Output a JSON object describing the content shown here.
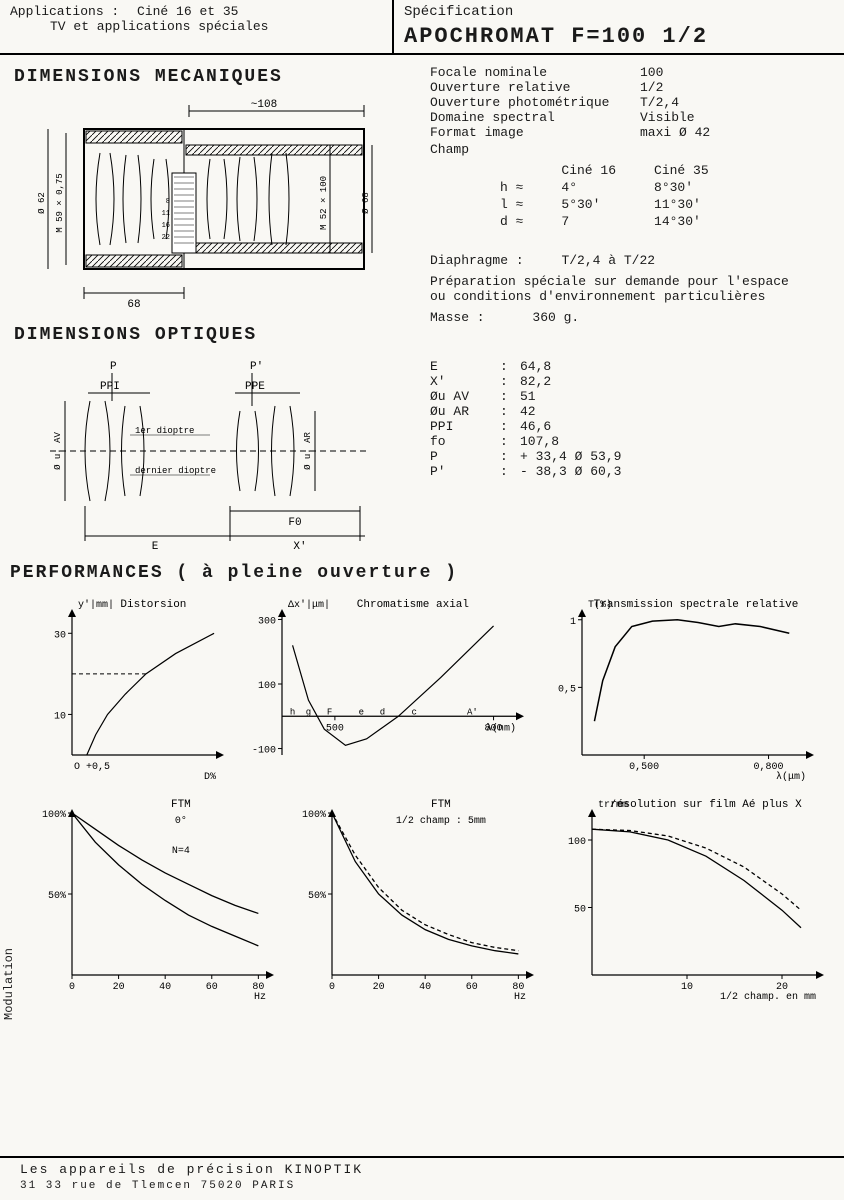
{
  "header": {
    "applications_label": "Applications :",
    "applications_line1": "Ciné 16 et 35",
    "applications_line2": "TV et applications spéciales",
    "spec_label": "Spécification",
    "spec_title": "APOCHROMAT  F=100  1/2"
  },
  "sections": {
    "dim_mech": "DIMENSIONS  MECANIQUES",
    "dim_opt": "DIMENSIONS  OPTIQUES",
    "perf": "PERFORMANCES ( à pleine ouverture )"
  },
  "mech_diagram": {
    "dim_top": "~108",
    "dim_bottom": "68",
    "left1": "Ø 62",
    "left2": "M 59 × 0,75",
    "right1": "M 52 × 100",
    "right2": "Ø 68",
    "marks": [
      "8",
      "11",
      "16",
      "22"
    ]
  },
  "specs": {
    "items": [
      {
        "k": "Focale nominale",
        "v": "100"
      },
      {
        "k": "Ouverture relative",
        "v": "1/2"
      },
      {
        "k": "Ouverture photométrique",
        "v": "T/2,4"
      },
      {
        "k": "Domaine spectral",
        "v": "Visible"
      },
      {
        "k": "Format image",
        "v": "maxi Ø 42"
      }
    ],
    "champ_label": "Champ",
    "champ_cols": [
      "",
      "Ciné 16",
      "Ciné 35"
    ],
    "champ_rows": [
      {
        "k": "h  ≈",
        "a": "4°",
        "b": "8°30'"
      },
      {
        "k": "l  ≈",
        "a": "5°30'",
        "b": "11°30'"
      },
      {
        "k": "d  ≈",
        "a": "7",
        "b": "14°30'"
      }
    ],
    "diaphragme_label": "Diaphragme :",
    "diaphragme_value": "T/2,4  à  T/22",
    "prep_note": "Préparation spéciale sur demande pour l'espace ou conditions d'environnement particulières",
    "masse_label": "Masse :",
    "masse_value": "360 g."
  },
  "opt_diagram": {
    "p": "P",
    "pp": "P'",
    "ppi": "PPI",
    "ppe": "PPE",
    "av": "Ø u. AV",
    "ar": "Ø u. AR",
    "d1": "1er dioptre",
    "d2": "dernier dioptre",
    "f0": "F0",
    "e": "E",
    "x": "X'"
  },
  "opt_values": {
    "rows": [
      {
        "k": "E",
        "v": "64,8"
      },
      {
        "k": "X'",
        "v": "82,2"
      },
      {
        "k": "Øu AV",
        "v": "51"
      },
      {
        "k": "Øu AR",
        "v": "42"
      },
      {
        "k": "PPI",
        "v": "46,6"
      },
      {
        "k": "fo",
        "v": "107,8"
      },
      {
        "k": "P",
        "v": "+ 33,4   Ø  53,9"
      },
      {
        "k": "P'",
        "v": "- 38,3   Ø  60,3"
      }
    ]
  },
  "charts": {
    "distortion": {
      "type": "line",
      "title": "Distorsion",
      "ylabel": "y'|mm|",
      "xlabel": "D%",
      "xlim": [
        0,
        0.5
      ],
      "ylim": [
        0,
        35
      ],
      "yticks": [
        10,
        30
      ],
      "origin_label": "O +0,5",
      "points": [
        [
          0.05,
          0
        ],
        [
          0.08,
          5
        ],
        [
          0.12,
          10
        ],
        [
          0.18,
          15
        ],
        [
          0.25,
          20
        ],
        [
          0.35,
          25
        ],
        [
          0.48,
          30
        ]
      ],
      "line_color": "#000",
      "line_width": 1.2,
      "dashed_y": 20
    },
    "chromatism": {
      "type": "line",
      "title": "Chromatisme axial",
      "ylabel": "Δx'|μm|",
      "xlabel": "λ(nm)",
      "xlim": [
        400,
        850
      ],
      "ylim": [
        -120,
        320
      ],
      "yticks": [
        -100,
        100,
        300
      ],
      "xticks": [
        500,
        800
      ],
      "band_labels": [
        "h",
        "g",
        "F",
        "e",
        "d",
        "c",
        "A'"
      ],
      "points": [
        [
          420,
          220
        ],
        [
          450,
          50
        ],
        [
          480,
          -40
        ],
        [
          520,
          -90
        ],
        [
          560,
          -70
        ],
        [
          620,
          0
        ],
        [
          700,
          120
        ],
        [
          800,
          280
        ]
      ],
      "line_color": "#000",
      "line_width": 1.2
    },
    "transmission": {
      "type": "line",
      "title": "Transmission spectrale relative",
      "ylabel": "T(%)",
      "xlabel": "λ(μm)",
      "xlim": [
        0.35,
        0.9
      ],
      "ylim": [
        0,
        1.05
      ],
      "yticks": [
        0.5,
        1
      ],
      "ytick_labels": [
        "0,5",
        "1"
      ],
      "xticks": [
        0.5,
        0.8
      ],
      "xtick_labels": [
        "0,500",
        "0,800"
      ],
      "points": [
        [
          0.38,
          0.25
        ],
        [
          0.4,
          0.55
        ],
        [
          0.43,
          0.8
        ],
        [
          0.47,
          0.95
        ],
        [
          0.52,
          0.99
        ],
        [
          0.58,
          1.0
        ],
        [
          0.63,
          0.98
        ],
        [
          0.68,
          0.95
        ],
        [
          0.72,
          0.97
        ],
        [
          0.78,
          0.95
        ],
        [
          0.85,
          0.9
        ]
      ],
      "line_color": "#000",
      "line_width": 1.5
    },
    "ftm0": {
      "type": "line",
      "title": "FTM",
      "subtitle": "0°",
      "note": "N=4",
      "ylabel": "",
      "xlabel": "Hz",
      "xlim": [
        0,
        85
      ],
      "ylim": [
        0,
        100
      ],
      "yticks": [
        50,
        100
      ],
      "ytick_labels": [
        "50%",
        "100%"
      ],
      "xticks": [
        0,
        20,
        40,
        60,
        80
      ],
      "series": [
        {
          "points": [
            [
              0,
              100
            ],
            [
              10,
              82
            ],
            [
              20,
              68
            ],
            [
              30,
              56
            ],
            [
              40,
              46
            ],
            [
              50,
              37
            ],
            [
              60,
              30
            ],
            [
              70,
              24
            ],
            [
              80,
              18
            ]
          ],
          "dash": "none"
        },
        {
          "points": [
            [
              0,
              100
            ],
            [
              10,
              90
            ],
            [
              20,
              80
            ],
            [
              30,
              71
            ],
            [
              40,
              63
            ],
            [
              50,
              56
            ],
            [
              60,
              49
            ],
            [
              70,
              43
            ],
            [
              80,
              38
            ]
          ],
          "dash": "none"
        }
      ],
      "line_color": "#000",
      "line_width": 1.3
    },
    "ftm_half": {
      "type": "line",
      "title": "FTM",
      "subtitle": "1/2 champ : 5mm",
      "xlim": [
        0,
        85
      ],
      "ylim": [
        0,
        100
      ],
      "yticks": [
        50,
        100
      ],
      "ytick_labels": [
        "50%",
        "100%"
      ],
      "xticks": [
        0,
        20,
        40,
        60,
        80
      ],
      "xlabel": "Hz",
      "series": [
        {
          "points": [
            [
              0,
              100
            ],
            [
              10,
              70
            ],
            [
              20,
              50
            ],
            [
              30,
              37
            ],
            [
              40,
              28
            ],
            [
              50,
              22
            ],
            [
              60,
              18
            ],
            [
              70,
              15
            ],
            [
              80,
              13
            ]
          ],
          "dash": "none"
        },
        {
          "points": [
            [
              0,
              100
            ],
            [
              10,
              74
            ],
            [
              20,
              54
            ],
            [
              30,
              40
            ],
            [
              40,
              31
            ],
            [
              50,
              25
            ],
            [
              60,
              20
            ],
            [
              70,
              17
            ],
            [
              80,
              15
            ]
          ],
          "dash": "4,3"
        }
      ],
      "line_color": "#000",
      "line_width": 1.3
    },
    "resolution": {
      "type": "line",
      "title": "résolution sur film Aé plus X",
      "ylabel": "tr/mm",
      "xlabel": "1/2 champ. en mm",
      "xlim": [
        0,
        24
      ],
      "ylim": [
        0,
        120
      ],
      "yticks": [
        50,
        100
      ],
      "xticks": [
        10,
        20
      ],
      "series": [
        {
          "points": [
            [
              0,
              108
            ],
            [
              4,
              106
            ],
            [
              8,
              100
            ],
            [
              12,
              88
            ],
            [
              16,
              70
            ],
            [
              20,
              48
            ],
            [
              22,
              35
            ]
          ],
          "dash": "none"
        },
        {
          "points": [
            [
              0,
              108
            ],
            [
              4,
              107
            ],
            [
              8,
              103
            ],
            [
              12,
              94
            ],
            [
              16,
              80
            ],
            [
              20,
              60
            ],
            [
              22,
              48
            ]
          ],
          "dash": "4,3"
        }
      ],
      "line_color": "#000",
      "line_width": 1.3
    }
  },
  "footer": {
    "line1": "Les  appareils  de  précision   KINOPTIK",
    "line2": "31 33  rue  de  Tlemcen   75020   PARIS"
  },
  "modulation_label": "Modulation",
  "colors": {
    "ink": "#1a1a1a",
    "paper": "#f9f8f4",
    "axis": "#000000"
  }
}
